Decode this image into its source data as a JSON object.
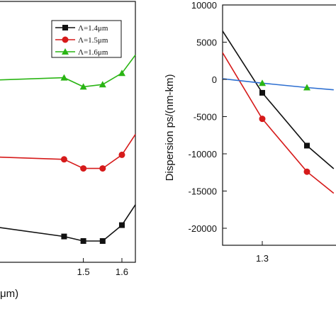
{
  "chart_data": [
    {
      "type": "line",
      "title": "",
      "xlabel": "μm)",
      "ylabel": "",
      "xlim": [
        1.28,
        1.635
      ],
      "ylim": [
        0,
        1
      ],
      "x_ticks": [
        1.5,
        1.6
      ],
      "x_tick_labels": [
        "1.5",
        "1.6"
      ],
      "grid": false,
      "legend_position": "top-right",
      "series": [
        {
          "name": "Λ=1.4μm",
          "color": "#111111",
          "marker": "square",
          "x": [
            1.45,
            1.5,
            1.55,
            1.6
          ],
          "y": [
            0.02,
            0.0,
            0.0,
            0.07
          ],
          "line_x": [
            1.28,
            1.45,
            1.5,
            1.55,
            1.6,
            1.635
          ],
          "line_y": [
            0.06,
            0.02,
            0.0,
            0.0,
            0.07,
            0.16
          ]
        },
        {
          "name": "Λ=1.5μm",
          "color": "#d61a1a",
          "marker": "circle",
          "x": [
            1.45,
            1.5,
            1.55,
            1.6
          ],
          "y": [
            0.36,
            0.32,
            0.32,
            0.38
          ],
          "line_x": [
            1.28,
            1.45,
            1.5,
            1.55,
            1.6,
            1.635
          ],
          "line_y": [
            0.37,
            0.36,
            0.32,
            0.32,
            0.38,
            0.47
          ]
        },
        {
          "name": "Λ=1.6μm",
          "color": "#2ab514",
          "marker": "triangle",
          "x": [
            1.45,
            1.5,
            1.55,
            1.6
          ],
          "y": [
            0.72,
            0.68,
            0.69,
            0.74
          ],
          "line_x": [
            1.28,
            1.45,
            1.5,
            1.55,
            1.6,
            1.635
          ],
          "line_y": [
            0.71,
            0.72,
            0.68,
            0.69,
            0.74,
            0.82
          ]
        }
      ]
    },
    {
      "type": "line",
      "title": "",
      "xlabel": "",
      "ylabel": "Dispersion ps/(nm-km)",
      "xlim": [
        1.255,
        1.345
      ],
      "ylim": [
        -22000,
        10000
      ],
      "x_ticks": [
        1.3
      ],
      "x_tick_labels": [
        "1.3"
      ],
      "y_ticks": [
        10000,
        5000,
        0,
        -5000,
        -10000,
        -15000,
        -20000
      ],
      "y_tick_labels": [
        "10000",
        "5000",
        "0",
        "-5000",
        "-10000",
        "-15000",
        "-20000"
      ],
      "grid": false,
      "series": [
        {
          "color": "#111111",
          "marker": "square",
          "x": [
            1.3,
            1.35
          ],
          "y": [
            -1800,
            -8900
          ],
          "line_x": [
            1.255,
            1.3,
            1.35,
            1.38
          ],
          "line_y": [
            6600,
            -1800,
            -8900,
            -12000
          ]
        },
        {
          "color": "#d61a1a",
          "marker": "circle",
          "x": [
            1.3,
            1.35
          ],
          "y": [
            -5300,
            -12400
          ],
          "line_x": [
            1.255,
            1.3,
            1.35,
            1.38
          ],
          "line_y": [
            3700,
            -5300,
            -12400,
            -15300
          ]
        },
        {
          "color": "#2d6fd1",
          "marker": "none",
          "x": [
            1.255,
            1.38
          ],
          "y": [
            100,
            -1400
          ],
          "line_x": [
            1.255,
            1.3,
            1.35,
            1.38
          ],
          "line_y": [
            100,
            -500,
            -1100,
            -1400
          ]
        },
        {
          "color": "#2ab514",
          "marker": "triangle",
          "x": [
            1.3,
            1.35
          ],
          "y": [
            -500,
            -1100
          ],
          "line_x": [],
          "line_y": []
        }
      ]
    }
  ]
}
